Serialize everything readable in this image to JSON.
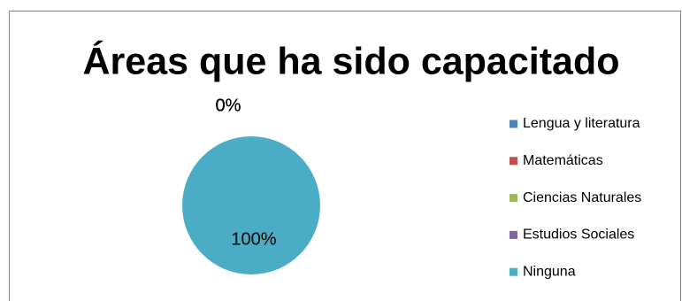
{
  "chart_data": {
    "type": "pie",
    "title": "Áreas que ha sido capacitado",
    "categories": [
      "Lengua y literatura",
      "Matemáticas",
      "Ciencias Naturales",
      "Estudios Sociales",
      "Ninguna"
    ],
    "values": [
      0,
      0,
      0,
      0,
      100
    ],
    "value_labels": [
      "0%",
      "0%",
      "0%",
      "0%",
      "100%"
    ],
    "colors": [
      "#4f81bd",
      "#c0504d",
      "#9bbb59",
      "#8064a2",
      "#4bacc6"
    ],
    "legend": "right"
  }
}
